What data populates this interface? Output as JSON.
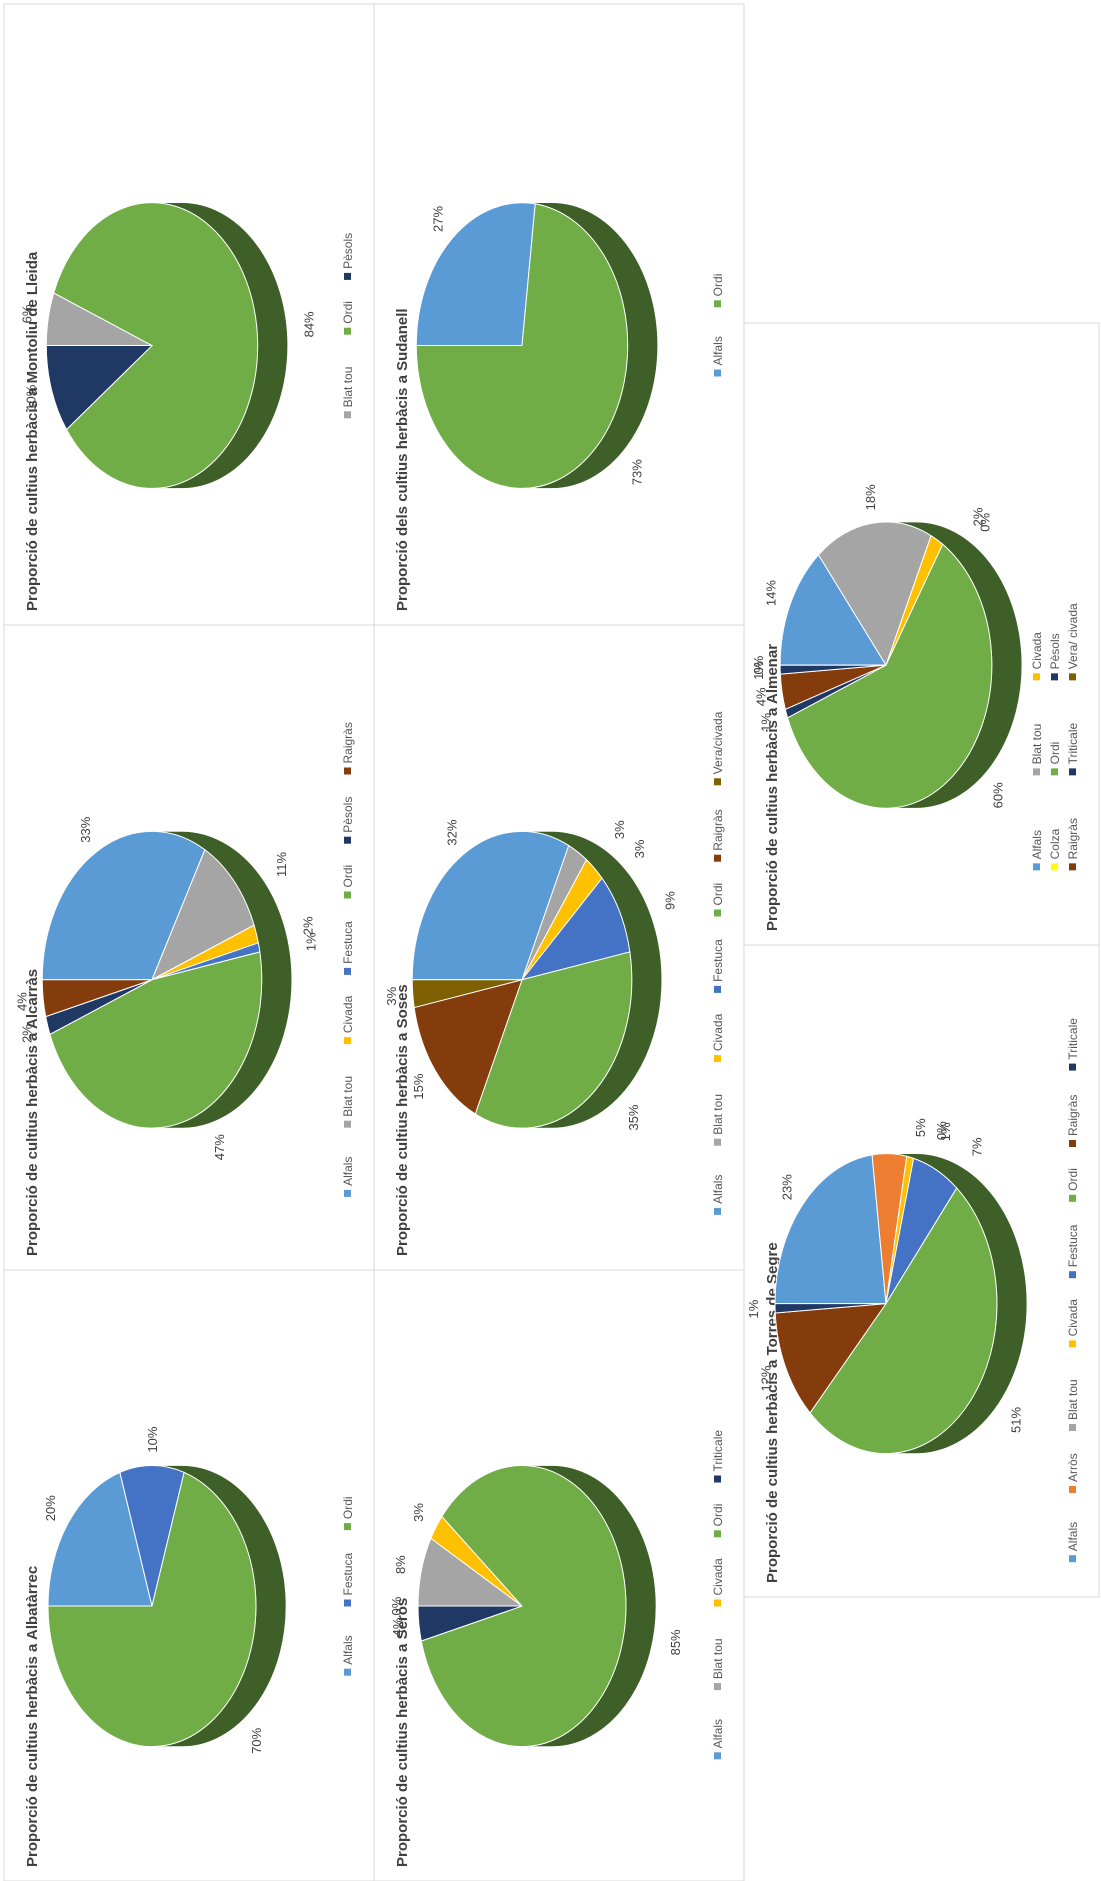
{
  "colors": {
    "Alfals": "#5B9BD5",
    "Arròs": "#ED7D31",
    "Blat tou": "#A5A5A5",
    "Civada": "#FFC000",
    "Colza": "#FFFF00",
    "Festuca": "#4472C4",
    "Ordi": "#70AD47",
    "Pèsols": "#1F3864",
    "Raigràs": "#843C0C",
    "Triticale": "#203864",
    "Vera/civada": "#7F6000",
    "Vera/ civada": "#7F6000"
  },
  "chart_data": [
    {
      "id": "albatarrec",
      "type": "pie",
      "title": "Proporció de cultius herbàcis a Albatàrrec",
      "categories": [
        "Alfals",
        "Festuca",
        "Ordi"
      ],
      "values": [
        20,
        10,
        70
      ],
      "labels": [
        "20%",
        "10%",
        "70%"
      ],
      "legend": "bottom"
    },
    {
      "id": "alcarras",
      "type": "pie",
      "title": "Proporció de cultius herbàcis a Alcarràs",
      "categories": [
        "Alfals",
        "Blat tou",
        "Civada",
        "Festuca",
        "Ordi",
        "Pèsols",
        "Raigràs"
      ],
      "values": [
        33,
        11,
        2,
        1,
        47,
        2,
        4
      ],
      "labels": [
        "33%",
        "11%",
        "2%",
        "1%",
        "47%",
        "2%",
        "4%"
      ],
      "legend": "bottom"
    },
    {
      "id": "montoliu",
      "type": "pie",
      "title": "Proporció de cultius herbàcis a Montoliu de Lleida",
      "categories": [
        "Blat tou",
        "Ordi",
        "Pèsols"
      ],
      "values": [
        6,
        84,
        10
      ],
      "labels": [
        "6%",
        "84%",
        "10%"
      ],
      "legend": "bottom"
    },
    {
      "id": "seros",
      "type": "pie",
      "title": "Proporció de cultius herbàcis a Seròs",
      "categories": [
        "Alfals",
        "Blat tou",
        "Civada",
        "Ordi",
        "Triticale"
      ],
      "values": [
        0,
        8,
        3,
        85,
        4
      ],
      "labels": [
        "0%",
        "8%",
        "3%",
        "85%",
        "4%"
      ],
      "legend": "bottom"
    },
    {
      "id": "soses",
      "type": "pie",
      "title": "Proporció de cultius herbàcis a Soses",
      "categories": [
        "Alfals",
        "Blat tou",
        "Civada",
        "Festuca",
        "Ordi",
        "Raigràs",
        "Vera/civada"
      ],
      "values": [
        32,
        3,
        3,
        9,
        35,
        15,
        3
      ],
      "labels": [
        "32%",
        "3%",
        "3%",
        "9%",
        "35%",
        "15%",
        "3%"
      ],
      "legend": "bottom"
    },
    {
      "id": "sudanell",
      "type": "pie",
      "title": "Proporció dels cultius herbàcis a Sudanell",
      "categories": [
        "Alfals",
        "Ordi"
      ],
      "values": [
        27,
        73
      ],
      "labels": [
        "27%",
        "73%"
      ],
      "legend": "bottom"
    },
    {
      "id": "torres",
      "type": "pie",
      "title": "Proporció de cultius herbàcis a Torres de Segre",
      "categories": [
        "Alfals",
        "Arròs",
        "Blat tou",
        "Civada",
        "Festuca",
        "Ordi",
        "Raigràs",
        "Triticale"
      ],
      "values": [
        23,
        5,
        0,
        1,
        7,
        51,
        12,
        1
      ],
      "labels": [
        "23%",
        "5%",
        "0%",
        "1%",
        "7%",
        "51%",
        "12%",
        "1%"
      ],
      "legend": "bottom"
    },
    {
      "id": "almenar",
      "type": "pie",
      "title": "Proporció de cultius herbàcis a Almenar",
      "categories": [
        "Alfals",
        "Blat tou",
        "Civada",
        "Colza",
        "Ordi",
        "Pèsols",
        "Raigràs",
        "Triticale",
        "Vera/ civada"
      ],
      "values": [
        14,
        18,
        2,
        0,
        60,
        1,
        4,
        1,
        0
      ],
      "labels": [
        "14%",
        "18%",
        "2%",
        "0%",
        "60%",
        "1%",
        "4%",
        "1%",
        "0%"
      ],
      "legend": "bottom"
    }
  ]
}
